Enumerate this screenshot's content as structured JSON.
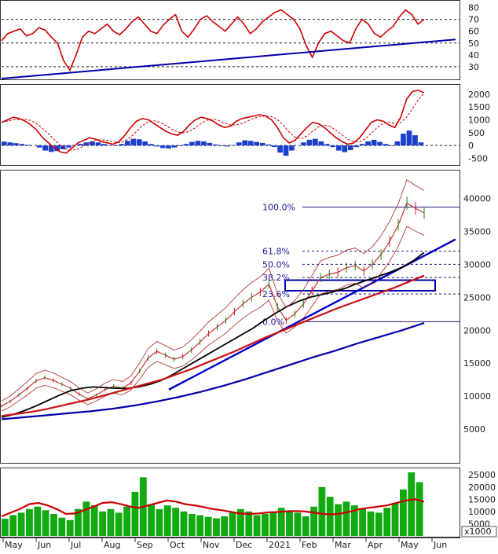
{
  "chart_data": [
    {
      "type": "line",
      "panel": "rsi",
      "yticks": [
        "80",
        "70",
        "60",
        "50",
        "40",
        "30"
      ],
      "reference_levels": [
        70,
        50,
        30
      ],
      "ylim": [
        20,
        85
      ],
      "series": [
        {
          "values": [
            52,
            58,
            60,
            62,
            56,
            58,
            63,
            61,
            55,
            50,
            35,
            27,
            40,
            55,
            60,
            58,
            62,
            66,
            60,
            57,
            62,
            68,
            72,
            66,
            60,
            58,
            65,
            70,
            74,
            60,
            55,
            62,
            70,
            73,
            68,
            64,
            60,
            66,
            72,
            66,
            58,
            62,
            68,
            72,
            76,
            78,
            74,
            70,
            62,
            48,
            38,
            50,
            58,
            60,
            56,
            52,
            50,
            62,
            70,
            66,
            58,
            55,
            60,
            64,
            72,
            78,
            74,
            66,
            70
          ],
          "color": "#cc0000"
        },
        {
          "values": [
            20,
            23,
            26,
            29,
            32,
            35,
            38,
            41,
            44,
            47,
            50,
            53
          ],
          "color": "#0000aa"
        }
      ]
    },
    {
      "type": "bar",
      "panel": "macd",
      "yticks": [
        "2000",
        "1500",
        "1000",
        "500",
        "0",
        "-500"
      ],
      "ylim": [
        -700,
        2300
      ],
      "series": [
        {
          "values": [
            900,
            1000,
            1100,
            1050,
            950,
            800,
            600,
            300,
            100,
            -100,
            -250,
            -300,
            -100,
            100,
            200,
            300,
            250,
            150,
            100,
            50,
            150,
            400,
            700,
            950,
            1050,
            1000,
            850,
            700,
            550,
            450,
            400,
            550,
            800,
            1000,
            1100,
            1050,
            950,
            800,
            700,
            750,
            950,
            1050,
            1100,
            1150,
            1200,
            1150,
            1000,
            700,
            300,
            100,
            200,
            450,
            700,
            900,
            850,
            700,
            500,
            300,
            150,
            50,
            100,
            300,
            600,
            900,
            1000,
            950,
            800,
            700,
            1100,
            1800,
            2100,
            2150,
            2050
          ],
          "color": "#cc0000"
        },
        {
          "values": [
            150,
            120,
            90,
            60,
            30,
            0,
            -80,
            -200,
            -250,
            -220,
            -150,
            -80,
            0,
            60,
            120,
            160,
            120,
            60,
            20,
            -20,
            60,
            180,
            260,
            240,
            160,
            60,
            -40,
            -100,
            -120,
            -80,
            -20,
            60,
            140,
            180,
            160,
            100,
            40,
            -20,
            -40,
            20,
            120,
            200,
            180,
            140,
            100,
            40,
            -60,
            -280,
            -400,
            -200,
            0,
            120,
            220,
            260,
            160,
            60,
            -60,
            -200,
            -260,
            -180,
            -60,
            60,
            160,
            220,
            140,
            60,
            -20,
            160,
            460,
            580,
            400,
            120
          ],
          "color": "#1a3fcc"
        }
      ]
    },
    {
      "type": "line",
      "panel": "price",
      "yticks": [
        "40000",
        "35000",
        "30000",
        "25000",
        "20000",
        "15000",
        "10000",
        "5000"
      ],
      "ylim": [
        0,
        44000
      ],
      "fib_levels": [
        {
          "label": "100.0%",
          "value": 38700
        },
        {
          "label": "61.8%",
          "value": 32000
        },
        {
          "label": "50.0%",
          "value": 30000
        },
        {
          "label": "38.2%",
          "value": 28000
        },
        {
          "label": "23.6%",
          "value": 25500
        },
        {
          "label": "0.0%",
          "value": 21300
        }
      ],
      "series": [
        {
          "values": [
            8500,
            9200,
            10200,
            11200,
            12300,
            12800,
            12400,
            11800,
            11200,
            10300,
            9600,
            10200,
            11000,
            11500,
            11200,
            12000,
            13800,
            15800,
            16800,
            16200,
            15600,
            16000,
            17000,
            18200,
            19500,
            20500,
            21500,
            22800,
            24000,
            25000,
            25800,
            27000,
            23500,
            21500,
            22500,
            24000,
            26000,
            28000,
            28500,
            28800,
            29500,
            29800,
            29000,
            30000,
            31500,
            33500,
            36000,
            39300,
            38500,
            37800
          ],
          "color": "#cc3333",
          "name": ""
        },
        {
          "values": [
            6800,
            7200,
            7800,
            8500,
            9300,
            10100,
            10800,
            11200,
            11400,
            11300,
            11200,
            11200,
            11400,
            11800,
            12400,
            13300,
            14300,
            15300,
            16300,
            17300,
            18300,
            19300,
            20300,
            21500,
            22600,
            23600,
            24400,
            25000,
            25400,
            25800,
            26300,
            27000,
            27600,
            28200,
            28800,
            29500,
            30500,
            31800
          ],
          "color": "#000000",
          "name": ""
        },
        {
          "values": [
            7000,
            7300,
            7600,
            8000,
            8500,
            9000,
            9500,
            10100,
            10700,
            11300,
            11900,
            12500,
            13300,
            14100,
            15000,
            15900,
            16800,
            17800,
            18800,
            19700,
            20600,
            21500,
            22400,
            23300,
            24100,
            24900,
            25700,
            26500,
            27400,
            28300
          ],
          "color": "#cc1111",
          "name": ""
        },
        {
          "values": [
            6500,
            6800,
            7100,
            7400,
            7700,
            8100,
            8600,
            9200,
            9900,
            10700,
            11600,
            12600,
            13700,
            14800,
            15900,
            16900,
            18000,
            19000,
            20000,
            21100
          ],
          "color": "#0000aa",
          "name": ""
        }
      ],
      "support_zone": {
        "low": 26000,
        "high": 27600
      }
    },
    {
      "type": "bar",
      "panel": "volume",
      "yticks": [
        "25000",
        "20000",
        "15000",
        "10000",
        "5000"
      ],
      "unit_label": "x1000",
      "ylim": [
        0,
        27000
      ],
      "series": [
        {
          "values": [
            7000,
            8500,
            9500,
            11000,
            12000,
            10500,
            9000,
            7500,
            6500,
            11000,
            14000,
            12500,
            10000,
            11000,
            9500,
            12000,
            18000,
            24000,
            13000,
            11000,
            12500,
            11500,
            10000,
            9000,
            8500,
            7800,
            7200,
            8000,
            9500,
            11000,
            10000,
            8500,
            9000,
            10000,
            11500,
            10500,
            9500,
            8000,
            12000,
            20000,
            16000,
            13000,
            14000,
            12500,
            11000,
            10000,
            9500,
            11500,
            13500,
            19000,
            26000,
            22000
          ],
          "color": "#11aa11"
        },
        {
          "values": [
            8000,
            9500,
            11000,
            13000,
            13500,
            12500,
            11000,
            9000,
            9200,
            10500,
            12000,
            13500,
            13800,
            13000,
            12000,
            11500,
            12500,
            13500,
            14500,
            14000,
            13000,
            12500,
            11800,
            11000,
            10500,
            9800,
            9200,
            9000,
            9200,
            9600,
            9800,
            10000,
            10200,
            10000,
            9500,
            9000,
            8800,
            9200,
            10000,
            11000,
            11500,
            12000,
            12500,
            13500,
            14500,
            15000,
            14000
          ],
          "color": "#cc0000"
        }
      ]
    },
    {
      "type": "table",
      "panel": "time-axis",
      "month_labels": [
        "May",
        "Jun",
        "Jul",
        "Aug",
        "Sep",
        "Oct",
        "Nov",
        "Dec",
        "2021",
        "Feb",
        "Mar",
        "Apr",
        "May",
        "Jun"
      ]
    }
  ]
}
